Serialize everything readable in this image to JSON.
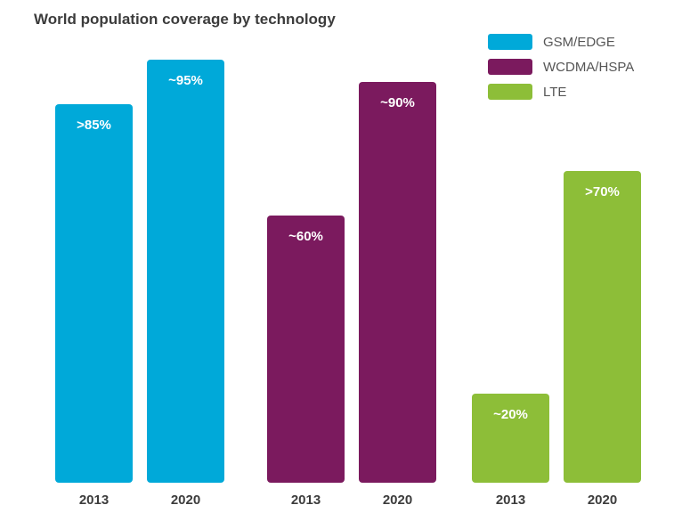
{
  "chart_data": {
    "type": "bar",
    "title": "World population coverage by technology",
    "ylim": [
      0,
      100
    ],
    "grid": false,
    "legend_position": "top-right",
    "series": [
      {
        "name": "GSM/EDGE",
        "color": "#00a9d9",
        "categories": [
          "2013",
          "2020"
        ],
        "values": [
          85,
          95
        ],
        "labels": [
          ">85%",
          "~95%"
        ]
      },
      {
        "name": "WCDMA/HSPA",
        "color": "#7b1a5e",
        "categories": [
          "2013",
          "2020"
        ],
        "values": [
          60,
          90
        ],
        "labels": [
          "~60%",
          "~90%"
        ]
      },
      {
        "name": "LTE",
        "color": "#8dbe38",
        "categories": [
          "2013",
          "2020"
        ],
        "values": [
          20,
          70
        ],
        "labels": [
          "~20%",
          ">70%"
        ]
      }
    ]
  }
}
